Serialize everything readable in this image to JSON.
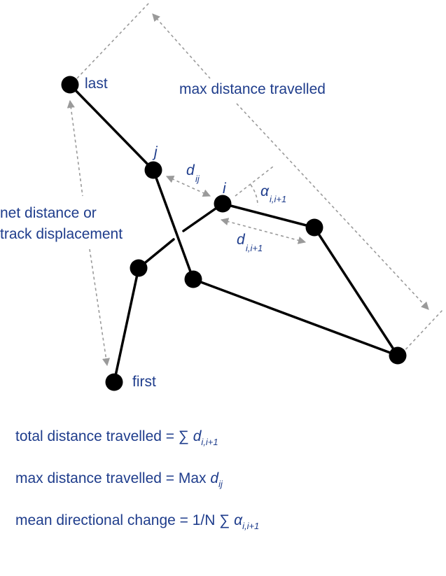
{
  "labels": {
    "last": "last",
    "first": "first",
    "j": "j",
    "i": "i",
    "d": "d",
    "d_ij_sub": "ij",
    "d_i_sub": "i,i+1",
    "alpha": "α",
    "alpha_sub": "i,i+1",
    "max_distance": "max distance travelled",
    "net_distance_line1": "net distance or",
    "net_distance_line2": "track displacement"
  },
  "formulas": {
    "total_text": "total distance travelled = ∑ ",
    "total_var": "d",
    "total_sub": "i,i+1",
    "max_text": "max distance travelled = Max ",
    "max_var": "d",
    "max_sub": "ij",
    "mean_text": "mean directional change = 1/N ∑ ",
    "mean_var": "α",
    "mean_sub": "i,i+1"
  },
  "colors": {
    "text": "#1f3d8c",
    "path": "#000000",
    "guide": "#9a9a9a"
  }
}
